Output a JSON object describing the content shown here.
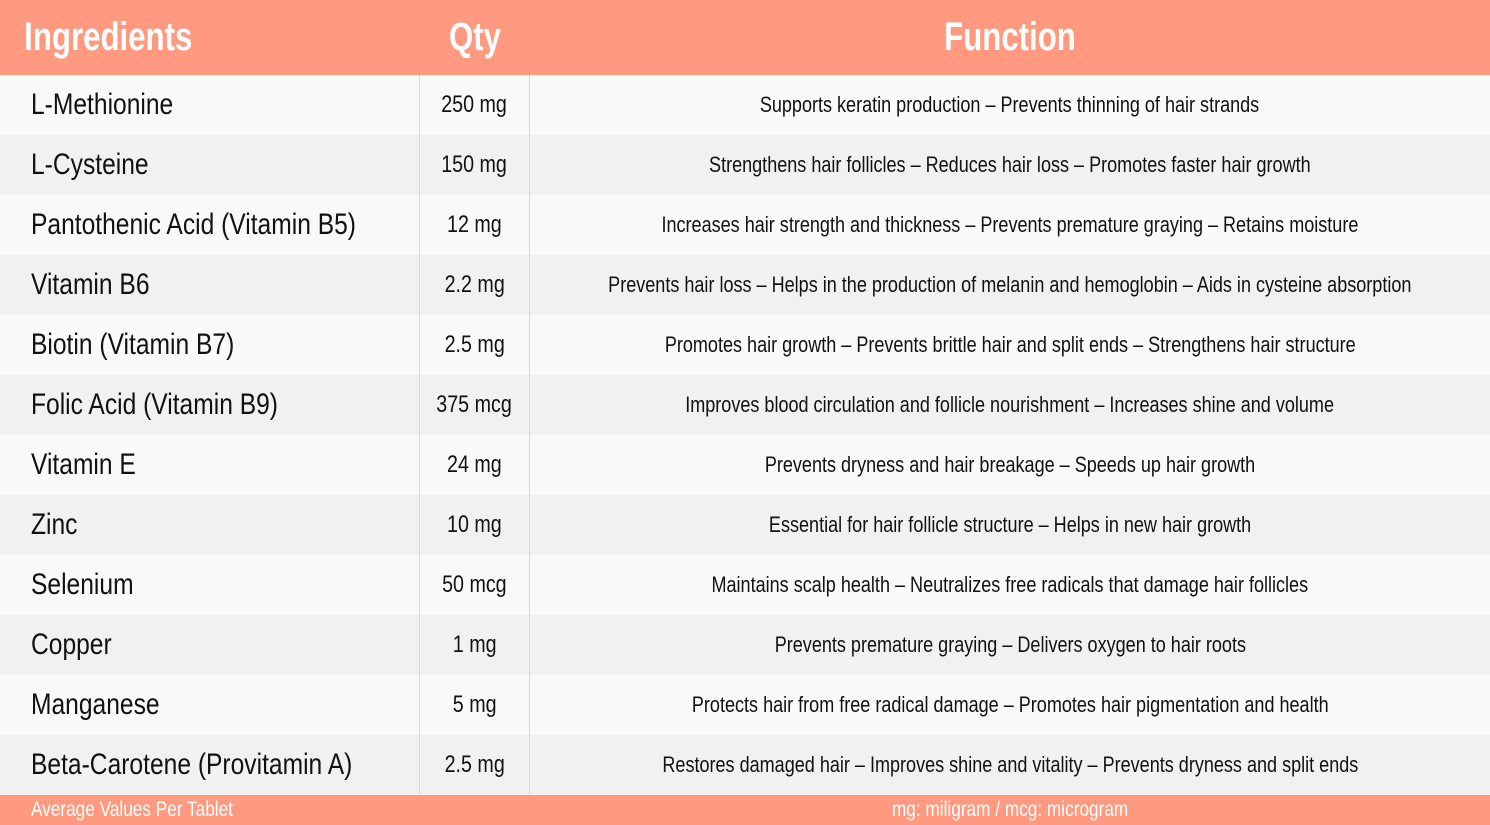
{
  "header": {
    "ingredients": "Ingredients",
    "qty": "Qty",
    "function": "Function"
  },
  "rows": [
    {
      "ingredient": "L-Methionine",
      "qty": "250 mg",
      "function": "Supports keratin production – Prevents thinning of hair strands"
    },
    {
      "ingredient": "L-Cysteine",
      "qty": "150 mg",
      "function": "Strengthens hair follicles – Reduces hair loss – Promotes faster hair growth"
    },
    {
      "ingredient": "Pantothenic Acid (Vitamin B5)",
      "qty": "12 mg",
      "function": "Increases hair strength and thickness – Prevents premature graying – Retains moisture"
    },
    {
      "ingredient": "Vitamin B6",
      "qty": "2.2 mg",
      "function": "Prevents hair loss – Helps in the production of melanin and hemoglobin – Aids in cysteine absorption"
    },
    {
      "ingredient": "Biotin (Vitamin B7)",
      "qty": "2.5 mg",
      "function": "Promotes hair growth – Prevents brittle hair and split ends – Strengthens hair structure"
    },
    {
      "ingredient": "Folic Acid (Vitamin B9)",
      "qty": "375 mcg",
      "function": "Improves blood circulation and follicle nourishment – Increases shine and volume"
    },
    {
      "ingredient": "Vitamin E",
      "qty": "24 mg",
      "function": "Prevents dryness and hair breakage – Speeds up hair growth"
    },
    {
      "ingredient": "Zinc",
      "qty": "10 mg",
      "function": "Essential for hair follicle structure – Helps in new hair growth"
    },
    {
      "ingredient": "Selenium",
      "qty": "50 mcg",
      "function": "Maintains scalp health – Neutralizes free radicals that damage hair follicles"
    },
    {
      "ingredient": "Copper",
      "qty": "1 mg",
      "function": "Prevents premature graying – Delivers oxygen to hair roots"
    },
    {
      "ingredient": "Manganese",
      "qty": "5 mg",
      "function": "Protects hair from free radical damage – Promotes hair pigmentation and health"
    },
    {
      "ingredient": "Beta-Carotene (Provitamin A)",
      "qty": "2.5 mg",
      "function": "Restores damaged hair – Improves shine and vitality – Prevents dryness and split ends"
    }
  ],
  "footer": {
    "left": "Average Values Per Tablet",
    "right": "mg: miligram / mcg: microgram"
  },
  "colors": {
    "header_bg": "#FF9A80",
    "row_light": "#F9F9F9",
    "row_dark": "#F1F1F1"
  }
}
